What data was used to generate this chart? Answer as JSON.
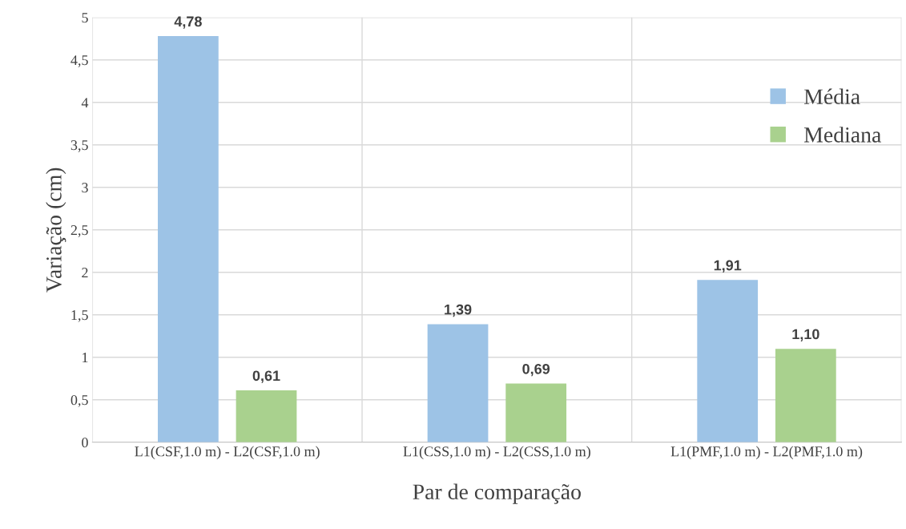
{
  "chart_data": {
    "type": "bar",
    "xlabel": "Par de comparação",
    "ylabel": "Variação (cm)",
    "categories": [
      "L1(CSF,1.0 m) - L2(CSF,1.0 m)",
      "L1(CSS,1.0 m) - L2(CSS,1.0 m)",
      "L1(PMF,1.0 m) - L2(PMF,1.0 m)"
    ],
    "series": [
      {
        "name": "Média",
        "color": "#9dc3e6",
        "values": [
          4.78,
          1.39,
          1.91
        ],
        "value_labels": [
          "4,78",
          "1,39",
          "1,91"
        ]
      },
      {
        "name": "Mediana",
        "color": "#a9d18e",
        "values": [
          0.61,
          0.69,
          1.1
        ],
        "value_labels": [
          "0,61",
          "0,69",
          "1,10"
        ]
      }
    ],
    "ylim": [
      0,
      5
    ],
    "yticks": [
      0,
      {
        "value": 0.5,
        "label": "0,5"
      },
      1,
      {
        "value": 1.5,
        "label": "1,5"
      },
      2,
      {
        "value": 2.5,
        "label": "2,5"
      },
      3,
      {
        "value": 3.5,
        "label": "3,5"
      },
      4,
      {
        "value": 4.5,
        "label": "4,5"
      },
      5
    ],
    "grid": true,
    "legend": "top right"
  }
}
